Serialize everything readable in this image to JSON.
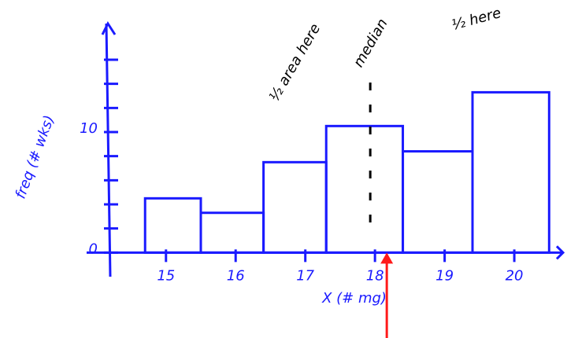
{
  "chart_data": {
    "type": "histogram",
    "bins": [
      14.7,
      15.5,
      16.4,
      17.3,
      18.4,
      19.4,
      20.5
    ],
    "values": [
      4.5,
      3.3,
      7.5,
      10.5,
      8.4,
      13.3
    ],
    "color": "#1a1aff",
    "xlim": [
      14.2,
      20.7
    ],
    "xticks": [
      15,
      16,
      17,
      18,
      19,
      20
    ],
    "ylim": [
      -2,
      19
    ],
    "yticks": [
      0,
      10
    ],
    "yminorticks": [
      2,
      4,
      6,
      8,
      12,
      14,
      16
    ],
    "xlabel": "X (# mg)",
    "ylabel": "freq (# wks)",
    "median": 18,
    "median_label": "median",
    "median_color": "#ff1a1a",
    "annotations": [
      "½ area here",
      "½ here"
    ]
  }
}
